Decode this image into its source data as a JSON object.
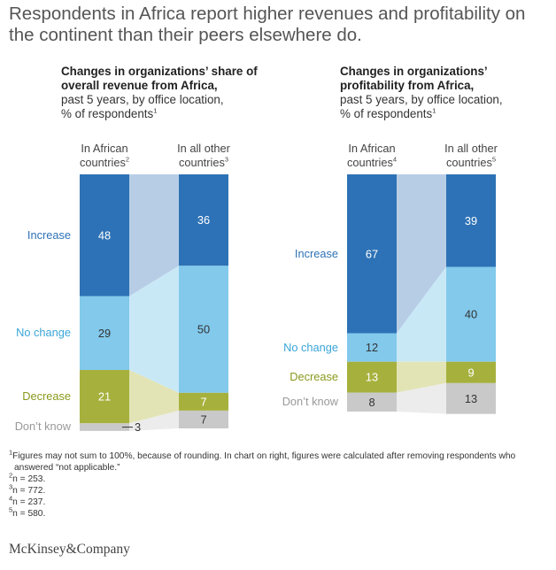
{
  "headline": "Respondents in Africa report higher revenues and profitability on the continent than their peers elsewhere do.",
  "panels": [
    {
      "title_bold": "Changes in organizations’ share of overall revenue from Africa,",
      "title_sub": "past 5 years, by office location,",
      "title_unit": "% of respondents",
      "title_note": "1"
    },
    {
      "title_bold": "Changes in organizations’ profitability from Africa,",
      "title_sub": "past 5 years, by office location,",
      "title_unit": "% of respondents",
      "title_note": "1"
    }
  ],
  "chart_data": [
    {
      "type": "bar",
      "title": "Changes in organizations’ share of overall revenue from Africa, past 5 years, by office location, % of respondents",
      "categories": [
        {
          "label": "In African countries",
          "note": "2"
        },
        {
          "label": "In all other countries",
          "note": "3"
        }
      ],
      "series": [
        {
          "name": "Increase",
          "values": [
            48,
            36
          ]
        },
        {
          "name": "No change",
          "values": [
            29,
            50
          ]
        },
        {
          "name": "Decrease",
          "values": [
            21,
            7
          ]
        },
        {
          "name": "Don’t know",
          "values": [
            3,
            7
          ]
        }
      ],
      "ylim": [
        0,
        101
      ]
    },
    {
      "type": "bar",
      "title": "Changes in organizations’ profitability from Africa, past 5 years, by office location, % of respondents",
      "categories": [
        {
          "label": "In African countries",
          "note": "4"
        },
        {
          "label": "In all other countries",
          "note": "5"
        }
      ],
      "series": [
        {
          "name": "Increase",
          "values": [
            67,
            39
          ]
        },
        {
          "name": "No change",
          "values": [
            12,
            40
          ]
        },
        {
          "name": "Decrease",
          "values": [
            13,
            9
          ]
        },
        {
          "name": "Don’t know",
          "values": [
            8,
            13
          ]
        }
      ],
      "ylim": [
        0,
        101
      ]
    }
  ],
  "colors": {
    "Increase": {
      "bar": "#2d72b6",
      "flow": "#b7cde6",
      "text": "#2d72b6",
      "value": "#ffffff"
    },
    "No change": {
      "bar": "#82c9ec",
      "flow": "#c9e8f6",
      "text": "#3aa6d9",
      "value": "#333333"
    },
    "Decrease": {
      "bar": "#a6b13d",
      "flow": "#e2e4b5",
      "text": "#8a9a1c",
      "value": "#ffffff"
    },
    "Don’t know": {
      "bar": "#c9c9c9",
      "flow": "#ececec",
      "text": "#999999",
      "value": "#333333"
    }
  },
  "footnotes": [
    {
      "mark": "1",
      "text": "Figures may not sum to 100%, because of rounding. In chart on right, figures were calculated after removing respondents who answered “not applicable.”"
    },
    {
      "mark": "2",
      "text": "n = 253."
    },
    {
      "mark": "3",
      "text": "n = 772."
    },
    {
      "mark": "4",
      "text": "n = 237."
    },
    {
      "mark": "5",
      "text": "n = 580."
    }
  ],
  "source": "McKinsey&Company"
}
